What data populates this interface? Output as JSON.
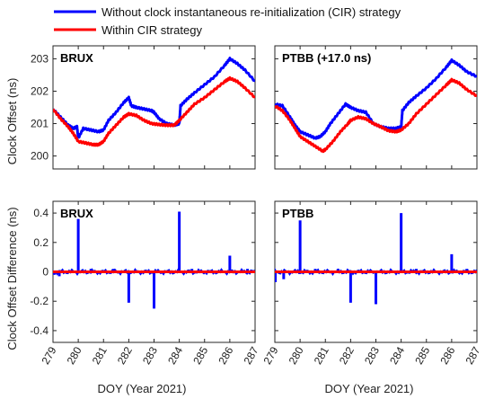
{
  "legend": [
    {
      "label": "Without clock instantaneous re-initialization (CIR) strategy",
      "color": "#0000ff"
    },
    {
      "label": "Within CIR strategy",
      "color": "#ff0000"
    }
  ],
  "xlabel": "DOY (Year 2021)",
  "ylabel_top": "Clock Offset (ns)",
  "ylabel_bottom": "Clock Offset Difference (ns)",
  "colors": {
    "blue": "#0000ff",
    "red": "#ff0000"
  },
  "chart_data": [
    {
      "type": "line",
      "title": "BRUX",
      "xlim": [
        279,
        287
      ],
      "xticks": [
        "279",
        "280",
        "281",
        "282",
        "283",
        "284",
        "285",
        "286",
        "287"
      ],
      "ylim": [
        199.6,
        203.4
      ],
      "yticks": [
        200,
        201,
        202,
        203
      ],
      "series": [
        {
          "name": "Without clock instantaneous re-initialization (CIR) strategy",
          "x": [
            279,
            279.3,
            279.6,
            279.8,
            279.95,
            280.0,
            280.2,
            280.5,
            280.8,
            281.0,
            281.2,
            281.5,
            281.8,
            282.0,
            282.1,
            282.3,
            282.6,
            282.9,
            283.0,
            283.2,
            283.5,
            283.8,
            284.0,
            284.05,
            284.3,
            284.6,
            285.0,
            285.4,
            285.8,
            286.0,
            286.3,
            286.6,
            287
          ],
          "y": [
            201.45,
            201.2,
            200.95,
            200.85,
            200.9,
            200.55,
            200.85,
            200.8,
            200.75,
            200.8,
            201.1,
            201.35,
            201.65,
            201.8,
            201.55,
            201.5,
            201.45,
            201.4,
            201.35,
            201.15,
            201.0,
            200.95,
            201.0,
            201.55,
            201.75,
            201.95,
            202.2,
            202.45,
            202.8,
            203.0,
            202.85,
            202.65,
            202.3
          ]
        },
        {
          "name": "Within CIR strategy",
          "x": [
            279,
            279.3,
            279.6,
            279.8,
            280.0,
            280.3,
            280.6,
            280.8,
            281.0,
            281.2,
            281.5,
            281.8,
            282.0,
            282.3,
            282.6,
            282.9,
            283.2,
            283.5,
            283.8,
            284.0,
            284.3,
            284.6,
            285.0,
            285.4,
            285.8,
            286.0,
            286.3,
            286.6,
            287
          ],
          "y": [
            201.45,
            201.15,
            200.9,
            200.7,
            200.45,
            200.4,
            200.35,
            200.35,
            200.45,
            200.7,
            200.95,
            201.2,
            201.3,
            201.25,
            201.1,
            201.0,
            200.97,
            200.95,
            200.95,
            201.1,
            201.35,
            201.6,
            201.8,
            202.05,
            202.3,
            202.4,
            202.3,
            202.1,
            201.8
          ]
        }
      ]
    },
    {
      "type": "line",
      "title": "PTBB (+17.0 ns)",
      "xlim": [
        279,
        287
      ],
      "xticks": [
        "279",
        "280",
        "281",
        "282",
        "283",
        "284",
        "285",
        "286",
        "287"
      ],
      "ylim": [
        199.6,
        203.4
      ],
      "yticks": [
        200,
        201,
        202,
        203
      ],
      "series": [
        {
          "name": "Without clock instantaneous re-initialization (CIR) strategy",
          "x": [
            279,
            279.3,
            279.6,
            279.8,
            280.0,
            280.3,
            280.6,
            280.8,
            281.0,
            281.2,
            281.5,
            281.8,
            282.0,
            282.3,
            282.6,
            282.9,
            283.2,
            283.5,
            283.8,
            284.0,
            284.05,
            284.3,
            284.6,
            285.0,
            285.4,
            285.8,
            286.0,
            286.3,
            286.6,
            287
          ],
          "y": [
            201.6,
            201.55,
            201.2,
            200.95,
            200.75,
            200.65,
            200.55,
            200.6,
            200.75,
            201.0,
            201.3,
            201.6,
            201.5,
            201.4,
            201.35,
            201.0,
            200.9,
            200.85,
            200.85,
            200.9,
            201.4,
            201.65,
            201.85,
            202.1,
            202.4,
            202.75,
            202.95,
            202.8,
            202.6,
            202.45
          ]
        },
        {
          "name": "Within CIR strategy",
          "x": [
            279,
            279.3,
            279.6,
            279.8,
            280.0,
            280.3,
            280.6,
            280.9,
            281.0,
            281.3,
            281.6,
            281.9,
            282.0,
            282.3,
            282.6,
            282.9,
            283.2,
            283.5,
            283.8,
            284.0,
            284.3,
            284.6,
            285.0,
            285.4,
            285.8,
            286.0,
            286.3,
            286.6,
            287
          ],
          "y": [
            201.55,
            201.4,
            201.1,
            200.85,
            200.6,
            200.45,
            200.3,
            200.15,
            200.2,
            200.45,
            200.75,
            201.0,
            201.1,
            201.2,
            201.15,
            201.0,
            200.9,
            200.78,
            200.75,
            200.8,
            201.0,
            201.3,
            201.6,
            201.9,
            202.2,
            202.35,
            202.25,
            202.05,
            201.85
          ]
        }
      ]
    },
    {
      "type": "line",
      "title": "BRUX",
      "xlim": [
        279,
        287
      ],
      "xticks": [
        "279",
        "280",
        "281",
        "282",
        "283",
        "284",
        "285",
        "286",
        "287"
      ],
      "ylim": [
        -0.48,
        0.48
      ],
      "yticks": [
        -0.4,
        -0.2,
        0,
        0.2,
        0.4
      ],
      "yticklabels": [
        "-0.4",
        "-0.2",
        "0",
        "0.2",
        "0.4"
      ],
      "series": [
        {
          "name": "Without clock instantaneous re-initialization (CIR) strategy",
          "spikes": [
            {
              "x": 279.05,
              "y": -0.02
            },
            {
              "x": 279.25,
              "y": -0.03
            },
            {
              "x": 280.0,
              "y": 0.36
            },
            {
              "x": 280.5,
              "y": 0.02
            },
            {
              "x": 281.4,
              "y": 0.02
            },
            {
              "x": 282.0,
              "y": -0.21
            },
            {
              "x": 283.0,
              "y": -0.25
            },
            {
              "x": 284.0,
              "y": 0.41
            },
            {
              "x": 284.5,
              "y": 0.02
            },
            {
              "x": 286.0,
              "y": 0.11
            },
            {
              "x": 286.7,
              "y": 0.02
            }
          ]
        },
        {
          "name": "Within CIR strategy",
          "y": 0
        }
      ]
    },
    {
      "type": "line",
      "title": "PTBB",
      "xlim": [
        279,
        287
      ],
      "xticks": [
        "279",
        "280",
        "281",
        "282",
        "283",
        "284",
        "285",
        "286",
        "287"
      ],
      "ylim": [
        -0.48,
        0.48
      ],
      "yticks": [
        -0.4,
        -0.2,
        0,
        0.2,
        0.4
      ],
      "yticklabels": [
        "-0.4",
        "-0.2",
        "0",
        "0.2",
        "0.4"
      ],
      "series": [
        {
          "name": "Without clock instantaneous re-initialization (CIR) strategy",
          "spikes": [
            {
              "x": 279.02,
              "y": -0.07
            },
            {
              "x": 279.35,
              "y": -0.05
            },
            {
              "x": 280.0,
              "y": 0.35
            },
            {
              "x": 280.6,
              "y": 0.02
            },
            {
              "x": 281.5,
              "y": 0.02
            },
            {
              "x": 282.0,
              "y": -0.21
            },
            {
              "x": 283.0,
              "y": -0.22
            },
            {
              "x": 284.0,
              "y": 0.4
            },
            {
              "x": 284.6,
              "y": 0.02
            },
            {
              "x": 286.0,
              "y": 0.12
            },
            {
              "x": 286.6,
              "y": 0.02
            }
          ]
        },
        {
          "name": "Within CIR strategy",
          "y": 0
        }
      ]
    }
  ]
}
